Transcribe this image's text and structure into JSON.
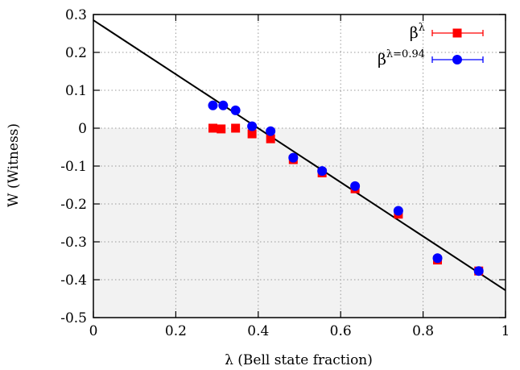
{
  "chart_data": {
    "type": "scatter",
    "xlabel": "λ (Bell state fraction)",
    "ylabel": "W (Witness)",
    "xlim": [
      0,
      1
    ],
    "ylim": [
      -0.5,
      0.3
    ],
    "xticks": [
      0,
      0.2,
      0.4,
      0.6,
      0.8,
      1
    ],
    "yticks": [
      0.3,
      0.2,
      0.1,
      0,
      -0.1,
      -0.2,
      -0.3,
      -0.4,
      -0.5
    ],
    "xtick_labels": [
      "0",
      "0.2",
      "0.4",
      "0.6",
      "0.8",
      "1"
    ],
    "ytick_labels": [
      "0.3",
      "0.2",
      "0.1",
      "0",
      "-0.1",
      "-0.2",
      "-0.3",
      "-0.4",
      "-0.5"
    ],
    "grid": true,
    "shaded_region": {
      "y_from": -0.5,
      "y_to": 0,
      "color": "#f2f2f2"
    },
    "legend_position": "top-right",
    "series": [
      {
        "name": "β",
        "name_sup": "λ",
        "marker": "square",
        "color": "#ff0000",
        "x": [
          0.29,
          0.31,
          0.345,
          0.385,
          0.43,
          0.485,
          0.555,
          0.635,
          0.74,
          0.835,
          0.935
        ],
        "y": [
          0.0,
          -0.002,
          0.0,
          -0.015,
          -0.028,
          -0.083,
          -0.118,
          -0.16,
          -0.227,
          -0.348,
          -0.377
        ]
      },
      {
        "name": "β",
        "name_sup": "λ=0.94",
        "marker": "circle",
        "color": "#0000ff",
        "x": [
          0.29,
          0.315,
          0.345,
          0.385,
          0.43,
          0.485,
          0.555,
          0.635,
          0.74,
          0.835,
          0.935
        ],
        "y": [
          0.06,
          0.06,
          0.047,
          0.005,
          -0.008,
          -0.078,
          -0.113,
          -0.153,
          -0.218,
          -0.343,
          -0.377
        ]
      }
    ],
    "lines": [
      {
        "points": [
          [
            0,
            0.285
          ],
          [
            1,
            -0.428
          ]
        ],
        "color": "#000000"
      }
    ]
  }
}
